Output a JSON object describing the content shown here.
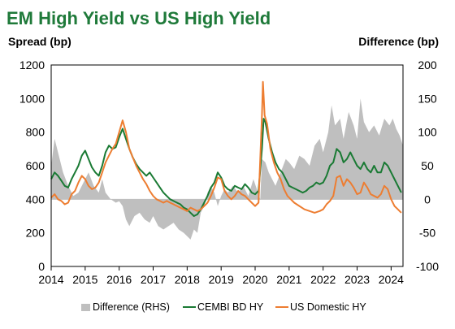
{
  "title": "EM High Yield vs US High Yield",
  "left_axis_title": "Spread (bp)",
  "right_axis_title": "Difference (bp)",
  "chart_data": {
    "type": "line",
    "y_left_ticks": [
      "0",
      "200",
      "400",
      "600",
      "800",
      "1000",
      "1200"
    ],
    "y_right_ticks": [
      "-100",
      "-50",
      "0",
      "50",
      "100",
      "150",
      "200"
    ],
    "x_ticks": [
      "2014",
      "2015",
      "2016",
      "2017",
      "2018",
      "2019",
      "2020",
      "2021",
      "2022",
      "2023",
      "2024"
    ],
    "ylim_left": [
      0,
      1200
    ],
    "ylim_right": [
      -100,
      200
    ],
    "xlim": [
      2014.0,
      2024.35
    ],
    "legend_position": "bottom",
    "series": [
      {
        "name": "Difference (RHS)",
        "axis": "right",
        "kind": "area",
        "color": "#bfbfbf",
        "points": [
          [
            2014.0,
            50
          ],
          [
            2014.1,
            90
          ],
          [
            2014.2,
            70
          ],
          [
            2014.35,
            40
          ],
          [
            2014.5,
            20
          ],
          [
            2014.65,
            5
          ],
          [
            2014.8,
            10
          ],
          [
            2014.95,
            25
          ],
          [
            2015.1,
            40
          ],
          [
            2015.25,
            20
          ],
          [
            2015.4,
            10
          ],
          [
            2015.5,
            30
          ],
          [
            2015.6,
            10
          ],
          [
            2015.75,
            0
          ],
          [
            2015.9,
            -5
          ],
          [
            2016.0,
            -3
          ],
          [
            2016.1,
            -10
          ],
          [
            2016.2,
            -30
          ],
          [
            2016.3,
            -40
          ],
          [
            2016.45,
            -25
          ],
          [
            2016.6,
            -20
          ],
          [
            2016.75,
            -30
          ],
          [
            2016.9,
            -35
          ],
          [
            2017.0,
            -25
          ],
          [
            2017.15,
            -40
          ],
          [
            2017.3,
            -45
          ],
          [
            2017.45,
            -40
          ],
          [
            2017.6,
            -35
          ],
          [
            2017.75,
            -45
          ],
          [
            2017.9,
            -50
          ],
          [
            2018.0,
            -55
          ],
          [
            2018.1,
            -60
          ],
          [
            2018.2,
            -45
          ],
          [
            2018.3,
            -50
          ],
          [
            2018.4,
            -20
          ],
          [
            2018.5,
            -10
          ],
          [
            2018.6,
            10
          ],
          [
            2018.7,
            20
          ],
          [
            2018.8,
            10
          ],
          [
            2018.9,
            -10
          ],
          [
            2019.0,
            5
          ],
          [
            2019.1,
            15
          ],
          [
            2019.2,
            10
          ],
          [
            2019.35,
            20
          ],
          [
            2019.5,
            10
          ],
          [
            2019.65,
            20
          ],
          [
            2019.8,
            5
          ],
          [
            2019.95,
            30
          ],
          [
            2020.05,
            15
          ],
          [
            2020.15,
            0
          ],
          [
            2020.2,
            60
          ],
          [
            2020.3,
            55
          ],
          [
            2020.4,
            40
          ],
          [
            2020.5,
            30
          ],
          [
            2020.6,
            20
          ],
          [
            2020.75,
            40
          ],
          [
            2020.9,
            60
          ],
          [
            2021.0,
            55
          ],
          [
            2021.15,
            45
          ],
          [
            2021.3,
            65
          ],
          [
            2021.45,
            60
          ],
          [
            2021.6,
            50
          ],
          [
            2021.75,
            80
          ],
          [
            2021.9,
            90
          ],
          [
            2022.0,
            70
          ],
          [
            2022.15,
            100
          ],
          [
            2022.25,
            140
          ],
          [
            2022.35,
            110
          ],
          [
            2022.5,
            120
          ],
          [
            2022.6,
            90
          ],
          [
            2022.75,
            130
          ],
          [
            2022.9,
            110
          ],
          [
            2023.0,
            90
          ],
          [
            2023.1,
            150
          ],
          [
            2023.2,
            115
          ],
          [
            2023.35,
            100
          ],
          [
            2023.5,
            110
          ],
          [
            2023.65,
            95
          ],
          [
            2023.8,
            120
          ],
          [
            2023.95,
            110
          ],
          [
            2024.05,
            120
          ],
          [
            2024.15,
            105
          ],
          [
            2024.25,
            95
          ],
          [
            2024.35,
            80
          ]
        ]
      },
      {
        "name": "CEMBI BD HY",
        "axis": "left",
        "kind": "line",
        "color": "#1a7a34",
        "points": [
          [
            2014.0,
            520
          ],
          [
            2014.1,
            560
          ],
          [
            2014.2,
            540
          ],
          [
            2014.3,
            510
          ],
          [
            2014.4,
            480
          ],
          [
            2014.5,
            470
          ],
          [
            2014.6,
            520
          ],
          [
            2014.7,
            560
          ],
          [
            2014.8,
            600
          ],
          [
            2014.9,
            660
          ],
          [
            2015.0,
            690
          ],
          [
            2015.1,
            640
          ],
          [
            2015.2,
            590
          ],
          [
            2015.3,
            560
          ],
          [
            2015.4,
            540
          ],
          [
            2015.5,
            600
          ],
          [
            2015.6,
            680
          ],
          [
            2015.7,
            720
          ],
          [
            2015.8,
            700
          ],
          [
            2015.9,
            710
          ],
          [
            2016.0,
            770
          ],
          [
            2016.1,
            820
          ],
          [
            2016.2,
            760
          ],
          [
            2016.3,
            700
          ],
          [
            2016.4,
            650
          ],
          [
            2016.5,
            610
          ],
          [
            2016.6,
            580
          ],
          [
            2016.7,
            560
          ],
          [
            2016.8,
            540
          ],
          [
            2016.9,
            560
          ],
          [
            2017.0,
            530
          ],
          [
            2017.1,
            500
          ],
          [
            2017.2,
            470
          ],
          [
            2017.3,
            440
          ],
          [
            2017.4,
            420
          ],
          [
            2017.5,
            400
          ],
          [
            2017.6,
            390
          ],
          [
            2017.7,
            380
          ],
          [
            2017.8,
            370
          ],
          [
            2017.9,
            350
          ],
          [
            2018.0,
            340
          ],
          [
            2018.1,
            320
          ],
          [
            2018.2,
            300
          ],
          [
            2018.3,
            310
          ],
          [
            2018.4,
            340
          ],
          [
            2018.5,
            380
          ],
          [
            2018.6,
            420
          ],
          [
            2018.7,
            470
          ],
          [
            2018.8,
            500
          ],
          [
            2018.9,
            560
          ],
          [
            2019.0,
            530
          ],
          [
            2019.1,
            480
          ],
          [
            2019.2,
            460
          ],
          [
            2019.3,
            450
          ],
          [
            2019.4,
            480
          ],
          [
            2019.5,
            470
          ],
          [
            2019.6,
            460
          ],
          [
            2019.7,
            490
          ],
          [
            2019.8,
            470
          ],
          [
            2019.9,
            440
          ],
          [
            2020.0,
            430
          ],
          [
            2020.1,
            450
          ],
          [
            2020.2,
            700
          ],
          [
            2020.25,
            880
          ],
          [
            2020.3,
            860
          ],
          [
            2020.4,
            760
          ],
          [
            2020.5,
            680
          ],
          [
            2020.6,
            620
          ],
          [
            2020.7,
            580
          ],
          [
            2020.8,
            560
          ],
          [
            2020.9,
            520
          ],
          [
            2021.0,
            480
          ],
          [
            2021.1,
            470
          ],
          [
            2021.2,
            460
          ],
          [
            2021.3,
            450
          ],
          [
            2021.4,
            440
          ],
          [
            2021.5,
            450
          ],
          [
            2021.6,
            470
          ],
          [
            2021.7,
            480
          ],
          [
            2021.8,
            500
          ],
          [
            2021.9,
            490
          ],
          [
            2022.0,
            500
          ],
          [
            2022.1,
            540
          ],
          [
            2022.2,
            600
          ],
          [
            2022.3,
            620
          ],
          [
            2022.4,
            700
          ],
          [
            2022.5,
            680
          ],
          [
            2022.6,
            620
          ],
          [
            2022.7,
            640
          ],
          [
            2022.8,
            680
          ],
          [
            2022.9,
            640
          ],
          [
            2023.0,
            600
          ],
          [
            2023.1,
            580
          ],
          [
            2023.2,
            620
          ],
          [
            2023.3,
            580
          ],
          [
            2023.4,
            560
          ],
          [
            2023.5,
            600
          ],
          [
            2023.6,
            560
          ],
          [
            2023.7,
            560
          ],
          [
            2023.8,
            620
          ],
          [
            2023.9,
            600
          ],
          [
            2024.0,
            560
          ],
          [
            2024.1,
            520
          ],
          [
            2024.2,
            480
          ],
          [
            2024.3,
            440
          ]
        ]
      },
      {
        "name": "US Domestic HY",
        "axis": "left",
        "kind": "line",
        "color": "#ed7d31",
        "points": [
          [
            2014.0,
            410
          ],
          [
            2014.1,
            430
          ],
          [
            2014.2,
            400
          ],
          [
            2014.3,
            390
          ],
          [
            2014.4,
            370
          ],
          [
            2014.5,
            380
          ],
          [
            2014.6,
            430
          ],
          [
            2014.7,
            450
          ],
          [
            2014.8,
            500
          ],
          [
            2014.9,
            540
          ],
          [
            2015.0,
            520
          ],
          [
            2015.1,
            480
          ],
          [
            2015.2,
            460
          ],
          [
            2015.3,
            470
          ],
          [
            2015.4,
            500
          ],
          [
            2015.5,
            560
          ],
          [
            2015.6,
            620
          ],
          [
            2015.7,
            660
          ],
          [
            2015.8,
            700
          ],
          [
            2015.9,
            730
          ],
          [
            2016.0,
            800
          ],
          [
            2016.1,
            870
          ],
          [
            2016.2,
            800
          ],
          [
            2016.3,
            700
          ],
          [
            2016.4,
            650
          ],
          [
            2016.5,
            600
          ],
          [
            2016.6,
            560
          ],
          [
            2016.7,
            520
          ],
          [
            2016.8,
            490
          ],
          [
            2016.9,
            450
          ],
          [
            2017.0,
            420
          ],
          [
            2017.1,
            400
          ],
          [
            2017.2,
            390
          ],
          [
            2017.3,
            380
          ],
          [
            2017.4,
            390
          ],
          [
            2017.5,
            380
          ],
          [
            2017.6,
            370
          ],
          [
            2017.7,
            360
          ],
          [
            2017.8,
            350
          ],
          [
            2017.9,
            340
          ],
          [
            2018.0,
            330
          ],
          [
            2018.1,
            350
          ],
          [
            2018.2,
            340
          ],
          [
            2018.3,
            330
          ],
          [
            2018.4,
            340
          ],
          [
            2018.5,
            360
          ],
          [
            2018.6,
            380
          ],
          [
            2018.7,
            420
          ],
          [
            2018.8,
            470
          ],
          [
            2018.9,
            530
          ],
          [
            2019.0,
            520
          ],
          [
            2019.1,
            450
          ],
          [
            2019.2,
            420
          ],
          [
            2019.3,
            400
          ],
          [
            2019.4,
            420
          ],
          [
            2019.5,
            450
          ],
          [
            2019.6,
            430
          ],
          [
            2019.7,
            420
          ],
          [
            2019.8,
            400
          ],
          [
            2019.9,
            380
          ],
          [
            2020.0,
            360
          ],
          [
            2020.1,
            380
          ],
          [
            2020.2,
            900
          ],
          [
            2020.23,
            1100
          ],
          [
            2020.28,
            900
          ],
          [
            2020.35,
            850
          ],
          [
            2020.45,
            700
          ],
          [
            2020.55,
            620
          ],
          [
            2020.65,
            560
          ],
          [
            2020.75,
            520
          ],
          [
            2020.85,
            460
          ],
          [
            2020.95,
            420
          ],
          [
            2021.05,
            400
          ],
          [
            2021.15,
            380
          ],
          [
            2021.3,
            360
          ],
          [
            2021.45,
            340
          ],
          [
            2021.6,
            330
          ],
          [
            2021.75,
            320
          ],
          [
            2021.9,
            330
          ],
          [
            2022.0,
            340
          ],
          [
            2022.1,
            370
          ],
          [
            2022.2,
            390
          ],
          [
            2022.3,
            420
          ],
          [
            2022.4,
            530
          ],
          [
            2022.5,
            540
          ],
          [
            2022.6,
            480
          ],
          [
            2022.7,
            520
          ],
          [
            2022.8,
            500
          ],
          [
            2022.9,
            470
          ],
          [
            2023.0,
            430
          ],
          [
            2023.1,
            440
          ],
          [
            2023.2,
            500
          ],
          [
            2023.3,
            470
          ],
          [
            2023.4,
            430
          ],
          [
            2023.5,
            420
          ],
          [
            2023.6,
            410
          ],
          [
            2023.7,
            430
          ],
          [
            2023.8,
            480
          ],
          [
            2023.9,
            460
          ],
          [
            2024.0,
            400
          ],
          [
            2024.1,
            360
          ],
          [
            2024.2,
            340
          ],
          [
            2024.3,
            320
          ]
        ]
      }
    ]
  }
}
